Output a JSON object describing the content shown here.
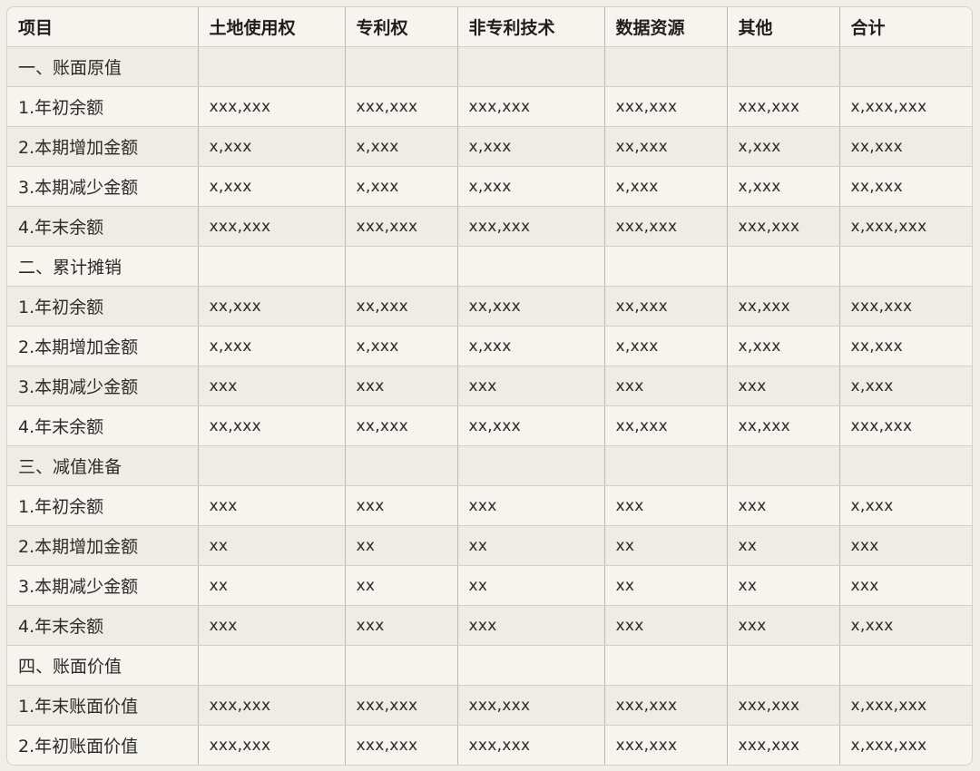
{
  "table": {
    "headers": [
      "项目",
      "土地使用权",
      "专利权",
      "非专利技术",
      "数据资源",
      "其他",
      "合计"
    ],
    "rows": [
      [
        "一、账面原值",
        "",
        "",
        "",
        "",
        "",
        ""
      ],
      [
        "1.年初余额",
        "xxx,xxx",
        "xxx,xxx",
        "xxx,xxx",
        "xxx,xxx",
        "xxx,xxx",
        "x,xxx,xxx"
      ],
      [
        "2.本期增加金额",
        "x,xxx",
        "x,xxx",
        "x,xxx",
        "xx,xxx",
        "x,xxx",
        "xx,xxx"
      ],
      [
        "3.本期减少金额",
        "x,xxx",
        "x,xxx",
        "x,xxx",
        "x,xxx",
        "x,xxx",
        "xx,xxx"
      ],
      [
        "4.年末余额",
        "xxx,xxx",
        "xxx,xxx",
        "xxx,xxx",
        "xxx,xxx",
        "xxx,xxx",
        "x,xxx,xxx"
      ],
      [
        "二、累计摊销",
        "",
        "",
        "",
        "",
        "",
        ""
      ],
      [
        "1.年初余额",
        "xx,xxx",
        "xx,xxx",
        "xx,xxx",
        "xx,xxx",
        "xx,xxx",
        "xxx,xxx"
      ],
      [
        "2.本期增加金额",
        "x,xxx",
        "x,xxx",
        "x,xxx",
        "x,xxx",
        "x,xxx",
        "xx,xxx"
      ],
      [
        "3.本期减少金额",
        "xxx",
        "xxx",
        "xxx",
        "xxx",
        "xxx",
        "x,xxx"
      ],
      [
        "4.年末余额",
        "xx,xxx",
        "xx,xxx",
        "xx,xxx",
        "xx,xxx",
        "xx,xxx",
        "xxx,xxx"
      ],
      [
        "三、减值准备",
        "",
        "",
        "",
        "",
        "",
        ""
      ],
      [
        "1.年初余额",
        "xxx",
        "xxx",
        "xxx",
        "xxx",
        "xxx",
        "x,xxx"
      ],
      [
        "2.本期增加金额",
        "xx",
        "xx",
        "xx",
        "xx",
        "xx",
        "xxx"
      ],
      [
        "3.本期减少金额",
        "xx",
        "xx",
        "xx",
        "xx",
        "xx",
        "xxx"
      ],
      [
        "4.年末余额",
        "xxx",
        "xxx",
        "xxx",
        "xxx",
        "xxx",
        "x,xxx"
      ],
      [
        "四、账面价值",
        "",
        "",
        "",
        "",
        "",
        ""
      ],
      [
        "1.年末账面价值",
        "xxx,xxx",
        "xxx,xxx",
        "xxx,xxx",
        "xxx,xxx",
        "xxx,xxx",
        "x,xxx,xxx"
      ],
      [
        "2.年初账面价值",
        "xxx,xxx",
        "xxx,xxx",
        "xxx,xxx",
        "xxx,xxx",
        "xxx,xxx",
        "x,xxx,xxx"
      ]
    ]
  }
}
